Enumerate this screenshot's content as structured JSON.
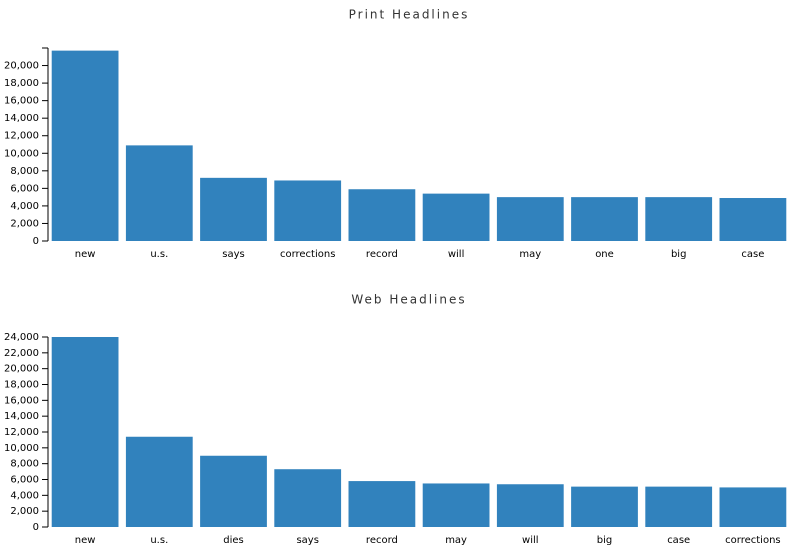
{
  "chart_data": [
    {
      "type": "bar",
      "title": "Print Headlines",
      "categories": [
        "new",
        "u.s.",
        "says",
        "corrections",
        "record",
        "will",
        "may",
        "one",
        "big",
        "case"
      ],
      "values": [
        21700,
        10900,
        7200,
        6900,
        5900,
        5400,
        5000,
        5000,
        5000,
        4900
      ],
      "color": "#3182bd",
      "ylim": [
        0,
        22000
      ],
      "yticks": [
        0,
        {
          "value": 2000,
          "label": "2,000"
        },
        {
          "value": 4000,
          "label": "4,000"
        },
        {
          "value": 6000,
          "label": "6,000"
        },
        {
          "value": 8000,
          "label": "8,000"
        },
        {
          "value": 10000,
          "label": "10,000"
        },
        {
          "value": 12000,
          "label": "12,000"
        },
        {
          "value": 14000,
          "label": "14,000"
        },
        {
          "value": 16000,
          "label": "16,000"
        },
        {
          "value": 18000,
          "label": "18,000"
        },
        {
          "value": 20000,
          "label": "20,000"
        }
      ]
    },
    {
      "type": "bar",
      "title": "Web Headlines",
      "categories": [
        "new",
        "u.s.",
        "dies",
        "says",
        "record",
        "may",
        "will",
        "big",
        "case",
        "corrections"
      ],
      "values": [
        24000,
        11400,
        9000,
        7300,
        5800,
        5500,
        5400,
        5100,
        5100,
        5000
      ],
      "color": "#3182bd",
      "ylim": [
        0,
        24000
      ],
      "yticks": [
        0,
        {
          "value": 2000,
          "label": "2,000"
        },
        {
          "value": 4000,
          "label": "4,000"
        },
        {
          "value": 6000,
          "label": "6,000"
        },
        {
          "value": 8000,
          "label": "8,000"
        },
        {
          "value": 10000,
          "label": "10,000"
        },
        {
          "value": 12000,
          "label": "12,000"
        },
        {
          "value": 14000,
          "label": "14,000"
        },
        {
          "value": 16000,
          "label": "16,000"
        },
        {
          "value": 18000,
          "label": "18,000"
        },
        {
          "value": 20000,
          "label": "20,000"
        },
        {
          "value": 22000,
          "label": "22,000"
        },
        {
          "value": 24000,
          "label": "24,000"
        }
      ]
    }
  ]
}
